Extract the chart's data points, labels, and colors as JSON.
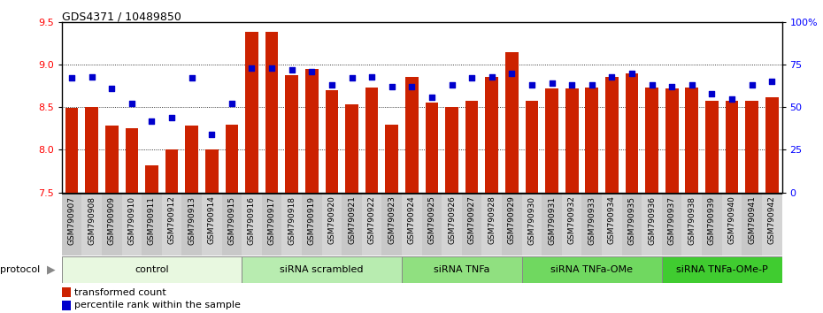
{
  "title": "GDS4371 / 10489850",
  "samples": [
    "GSM790907",
    "GSM790908",
    "GSM790909",
    "GSM790910",
    "GSM790911",
    "GSM790912",
    "GSM790913",
    "GSM790914",
    "GSM790915",
    "GSM790916",
    "GSM790917",
    "GSM790918",
    "GSM790919",
    "GSM790920",
    "GSM790921",
    "GSM790922",
    "GSM790923",
    "GSM790924",
    "GSM790925",
    "GSM790926",
    "GSM790927",
    "GSM790928",
    "GSM790929",
    "GSM790930",
    "GSM790931",
    "GSM790932",
    "GSM790933",
    "GSM790934",
    "GSM790935",
    "GSM790936",
    "GSM790937",
    "GSM790938",
    "GSM790939",
    "GSM790940",
    "GSM790941",
    "GSM790942"
  ],
  "bar_values": [
    8.49,
    8.5,
    8.28,
    8.25,
    7.82,
    8.01,
    8.28,
    8.0,
    8.3,
    9.38,
    9.38,
    8.88,
    8.95,
    8.7,
    8.53,
    8.73,
    8.3,
    8.85,
    8.55,
    8.5,
    8.58,
    8.85,
    9.15,
    8.58,
    8.72,
    8.72,
    8.73,
    8.85,
    8.9,
    8.73,
    8.72,
    8.73,
    8.58,
    8.58,
    8.58,
    8.62
  ],
  "percentile_values": [
    67,
    68,
    61,
    52,
    42,
    44,
    67,
    34,
    52,
    73,
    73,
    72,
    71,
    63,
    67,
    68,
    62,
    62,
    56,
    63,
    67,
    68,
    70,
    63,
    64,
    63,
    63,
    68,
    70,
    63,
    62,
    63,
    58,
    55,
    63,
    65
  ],
  "groups": [
    {
      "label": "control",
      "start": 0,
      "end": 9,
      "color": "#e8f8e0"
    },
    {
      "label": "siRNA scrambled",
      "start": 9,
      "end": 17,
      "color": "#b8ecb0"
    },
    {
      "label": "siRNA TNFa",
      "start": 17,
      "end": 23,
      "color": "#90e080"
    },
    {
      "label": "siRNA TNFa-OMe",
      "start": 23,
      "end": 30,
      "color": "#70d860"
    },
    {
      "label": "siRNA TNFa-OMe-P",
      "start": 30,
      "end": 36,
      "color": "#40cc30"
    }
  ],
  "ylim_left": [
    7.5,
    9.5
  ],
  "ylim_right": [
    0,
    100
  ],
  "yticks_left": [
    7.5,
    8.0,
    8.5,
    9.0,
    9.5
  ],
  "yticks_right": [
    0,
    25,
    50,
    75,
    100
  ],
  "ytick_right_labels": [
    "0",
    "25",
    "50",
    "75",
    "100%"
  ],
  "bar_color": "#cc2200",
  "dot_color": "#0000cc",
  "background_color": "#ffffff",
  "bar_width": 0.65,
  "legend_items": [
    {
      "label": "transformed count",
      "color": "#cc2200"
    },
    {
      "label": "percentile rank within the sample",
      "color": "#0000cc"
    }
  ]
}
